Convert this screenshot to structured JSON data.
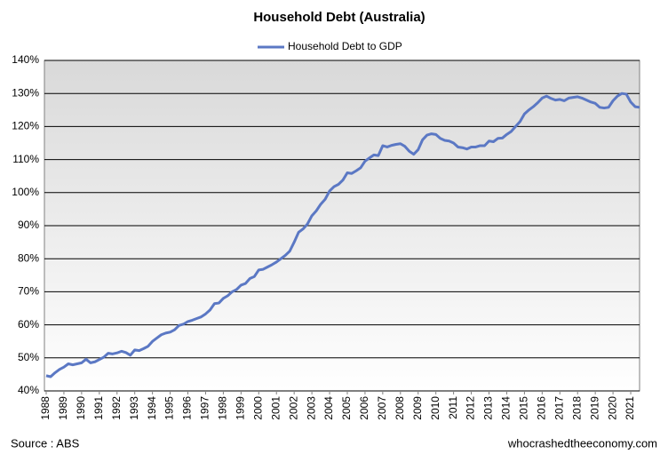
{
  "chart_data": {
    "type": "line",
    "title": "Household Debt (Australia)",
    "source": "Source : ABS",
    "credit": "whocrashedtheeconomy.com",
    "x": [
      1988.0,
      1988.25,
      1988.5,
      1988.75,
      1989.0,
      1989.25,
      1989.5,
      1989.75,
      1990.0,
      1990.25,
      1990.5,
      1990.75,
      1991.0,
      1991.25,
      1991.5,
      1991.75,
      1992.0,
      1992.25,
      1992.5,
      1992.75,
      1993.0,
      1993.25,
      1993.5,
      1993.75,
      1994.0,
      1994.25,
      1994.5,
      1994.75,
      1995.0,
      1995.25,
      1995.5,
      1995.75,
      1996.0,
      1996.25,
      1996.5,
      1996.75,
      1997.0,
      1997.25,
      1997.5,
      1997.75,
      1998.0,
      1998.25,
      1998.5,
      1998.75,
      1999.0,
      1999.25,
      1999.5,
      1999.75,
      2000.0,
      2000.25,
      2000.5,
      2000.75,
      2001.0,
      2001.25,
      2001.5,
      2001.75,
      2002.0,
      2002.25,
      2002.5,
      2002.75,
      2003.0,
      2003.25,
      2003.5,
      2003.75,
      2004.0,
      2004.25,
      2004.5,
      2004.75,
      2005.0,
      2005.25,
      2005.5,
      2005.75,
      2006.0,
      2006.25,
      2006.5,
      2006.75,
      2007.0,
      2007.25,
      2007.5,
      2007.75,
      2008.0,
      2008.25,
      2008.5,
      2008.75,
      2009.0,
      2009.25,
      2009.5,
      2009.75,
      2010.0,
      2010.25,
      2010.5,
      2010.75,
      2011.0,
      2011.25,
      2011.5,
      2011.75,
      2012.0,
      2012.25,
      2012.5,
      2012.75,
      2013.0,
      2013.25,
      2013.5,
      2013.75,
      2014.0,
      2014.25,
      2014.5,
      2014.75,
      2015.0,
      2015.25,
      2015.5,
      2015.75,
      2016.0,
      2016.25,
      2016.5,
      2016.75,
      2017.0,
      2017.25,
      2017.5,
      2017.75,
      2018.0,
      2018.25,
      2018.5,
      2018.75,
      2019.0,
      2019.25,
      2019.5,
      2019.75,
      2020.0,
      2020.25,
      2020.5,
      2020.75,
      2021.0,
      2021.25,
      2021.5
    ],
    "series": [
      {
        "name": "Household Debt to GDP",
        "color": "#5b78c4",
        "values": [
          44.6,
          44.3,
          45.5,
          46.5,
          47.2,
          48.2,
          47.9,
          48.2,
          48.5,
          49.6,
          48.5,
          48.8,
          49.5,
          50.2,
          51.4,
          51.2,
          51.5,
          52.0,
          51.6,
          50.8,
          52.4,
          52.2,
          52.8,
          53.5,
          55.0,
          56.0,
          57.0,
          57.5,
          57.8,
          58.5,
          59.8,
          60.2,
          61.0,
          61.4,
          61.9,
          62.4,
          63.3,
          64.5,
          66.4,
          66.6,
          68.0,
          68.8,
          70.0,
          70.7,
          72.0,
          72.5,
          74.0,
          74.6,
          76.6,
          76.8,
          77.5,
          78.2,
          79.0,
          80.0,
          81.0,
          82.3,
          85.0,
          88.0,
          89.0,
          90.5,
          93.0,
          94.5,
          96.5,
          98.0,
          100.5,
          101.8,
          102.5,
          103.8,
          106.0,
          105.8,
          106.6,
          107.5,
          109.5,
          110.5,
          111.4,
          111.2,
          114.2,
          113.8,
          114.3,
          114.6,
          114.8,
          114.0,
          112.5,
          111.6,
          113.0,
          116.0,
          117.4,
          117.8,
          117.6,
          116.4,
          115.8,
          115.6,
          115.0,
          113.8,
          113.6,
          113.2,
          113.8,
          113.8,
          114.2,
          114.2,
          115.6,
          115.4,
          116.4,
          116.5,
          117.6,
          118.5,
          120.0,
          121.5,
          123.8,
          125.0,
          126.0,
          127.2,
          128.6,
          129.2,
          128.5,
          128.0,
          128.2,
          127.8,
          128.6,
          128.8,
          129.0,
          128.6,
          128.0,
          127.4,
          127.0,
          125.8,
          125.6,
          125.8,
          127.8,
          129.2,
          130.0,
          129.8,
          127.4,
          126.0,
          125.8
        ]
      }
    ],
    "xlim": [
      1987.9,
      2021.5
    ],
    "xticks": [
      1988,
      1989,
      1990,
      1991,
      1992,
      1993,
      1994,
      1995,
      1996,
      1997,
      1998,
      1999,
      2000,
      2001,
      2002,
      2003,
      2004,
      2005,
      2006,
      2007,
      2008,
      2009,
      2010,
      2011,
      2012,
      2013,
      2014,
      2015,
      2016,
      2017,
      2018,
      2019,
      2020,
      2021
    ],
    "ylim": [
      40,
      140
    ],
    "yticks": [
      {
        "value": 40,
        "label": "40%"
      },
      {
        "value": 50,
        "label": "50%"
      },
      {
        "value": 60,
        "label": "60%"
      },
      {
        "value": 70,
        "label": "70%"
      },
      {
        "value": 80,
        "label": "80%"
      },
      {
        "value": 90,
        "label": "90%"
      },
      {
        "value": 100,
        "label": "100%"
      },
      {
        "value": 110,
        "label": "110%"
      },
      {
        "value": 120,
        "label": "120%"
      },
      {
        "value": 130,
        "label": "130%"
      },
      {
        "value": 140,
        "label": "140%"
      }
    ],
    "grid": true,
    "legend": "top"
  }
}
